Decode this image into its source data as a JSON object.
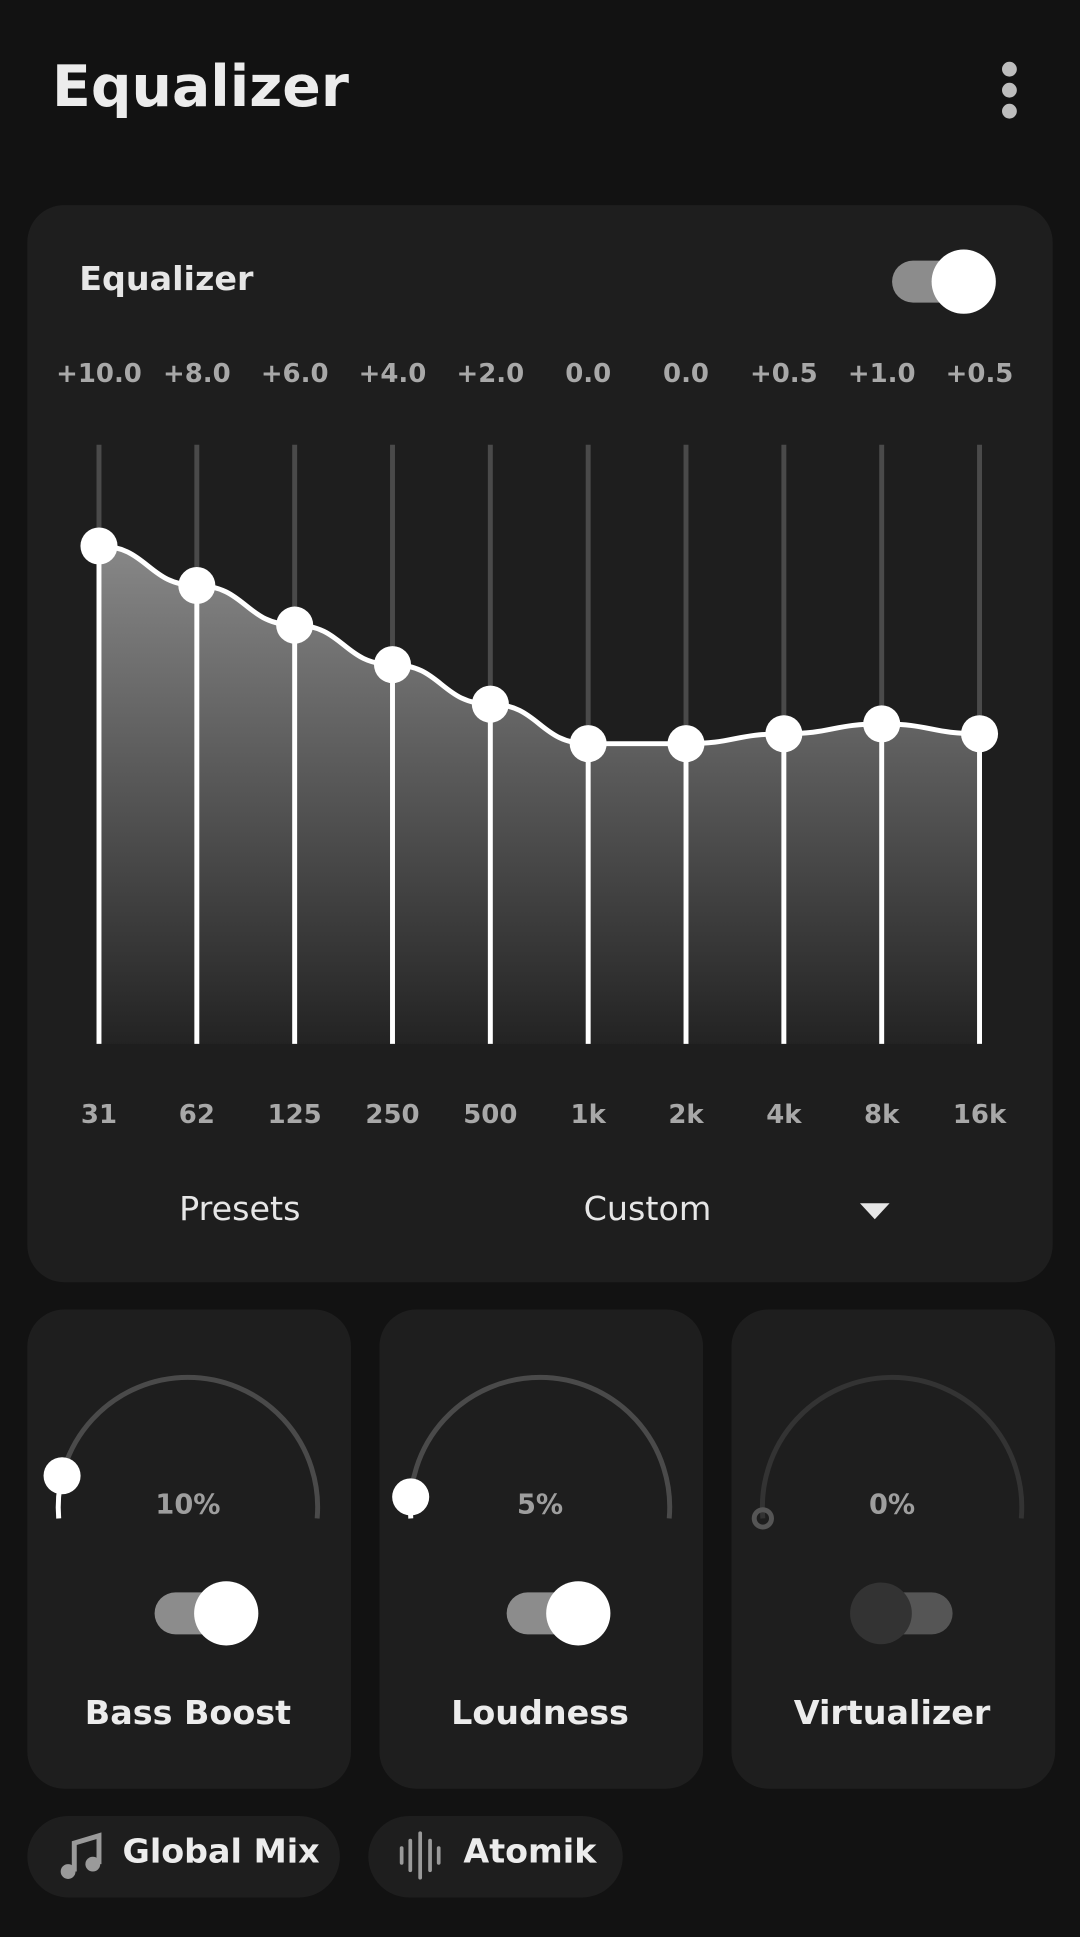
{
  "header": {
    "title": "Equalizer"
  },
  "equalizer": {
    "title": "Equalizer",
    "enabled": true,
    "bands": [
      {
        "frequency": "31",
        "gain": 10,
        "gain_label": "+10.0"
      },
      {
        "frequency": "62",
        "gain": 8,
        "gain_label": "+8.0"
      },
      {
        "frequency": "125",
        "gain": 6,
        "gain_label": "+6.0"
      },
      {
        "frequency": "250",
        "gain": 4,
        "gain_label": "+4.0"
      },
      {
        "frequency": "500",
        "gain": 2,
        "gain_label": "+2.0"
      },
      {
        "frequency": "1k",
        "gain": 0,
        "gain_label": "0.0"
      },
      {
        "frequency": "2k",
        "gain": 0,
        "gain_label": "0.0"
      },
      {
        "frequency": "4k",
        "gain": 0.5,
        "gain_label": "+0.5"
      },
      {
        "frequency": "8k",
        "gain": 1,
        "gain_label": "+1.0"
      },
      {
        "frequency": "16k",
        "gain": 0.5,
        "gain_label": "+0.5"
      }
    ],
    "presets_label": "Presets",
    "preset": "Custom"
  },
  "effects": [
    {
      "name": "Bass Boost",
      "value": 10,
      "value_label": "10%",
      "enabled": true
    },
    {
      "name": "Loudness",
      "value": 5,
      "value_label": "5%",
      "enabled": true
    },
    {
      "name": "Virtualizer",
      "value": 0,
      "value_label": "0%",
      "enabled": false
    }
  ],
  "chips": [
    {
      "label": "Global Mix"
    },
    {
      "label": "Atomik"
    }
  ]
}
